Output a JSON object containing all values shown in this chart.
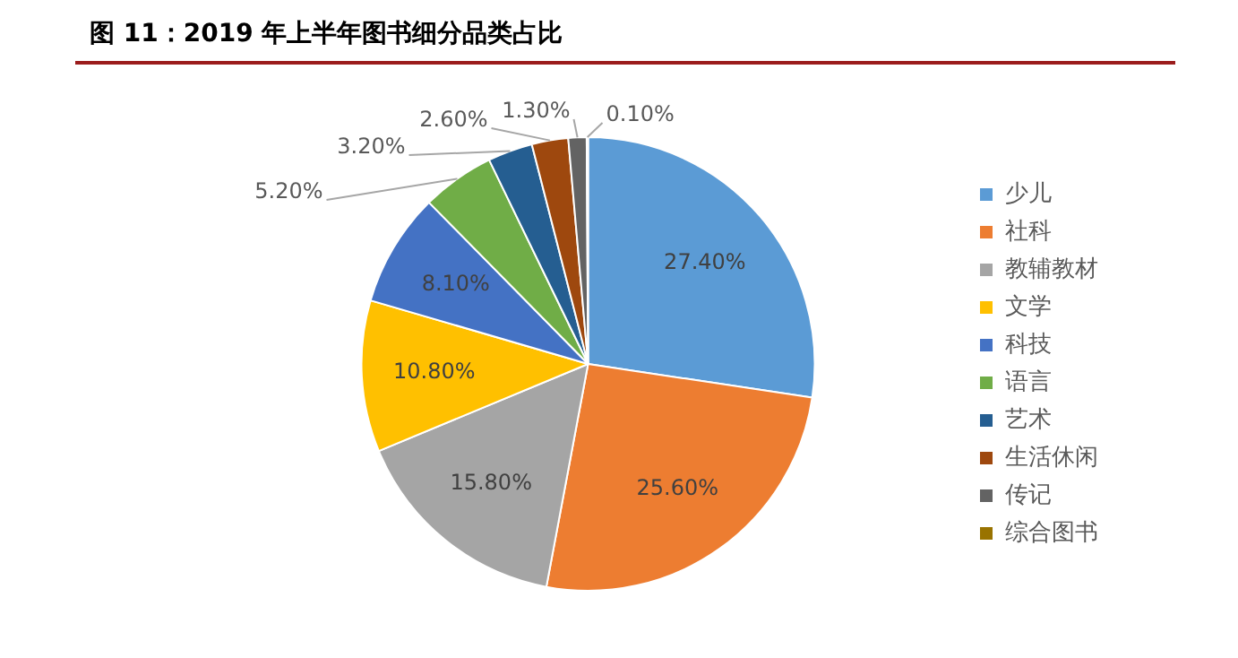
{
  "chart_data": {
    "type": "pie",
    "title": "图 11：2019 年上半年图书细分品类占比",
    "categories": [
      "少儿",
      "社科",
      "教辅教材",
      "文学",
      "科技",
      "语言",
      "艺术",
      "生活休闲",
      "传记",
      "综合图书"
    ],
    "values": [
      27.4,
      25.6,
      15.8,
      10.8,
      8.1,
      5.2,
      3.2,
      2.6,
      1.3,
      0.1
    ],
    "value_labels": [
      "27.40%",
      "25.60%",
      "15.80%",
      "10.80%",
      "8.10%",
      "5.20%",
      "3.20%",
      "2.60%",
      "1.30%",
      "0.10%"
    ],
    "colors": [
      "#5b9bd5",
      "#ed7d31",
      "#a5a5a5",
      "#ffc000",
      "#4472c4",
      "#70ad47",
      "#255e91",
      "#9e480e",
      "#636363",
      "#997300"
    ],
    "legend": "right"
  }
}
